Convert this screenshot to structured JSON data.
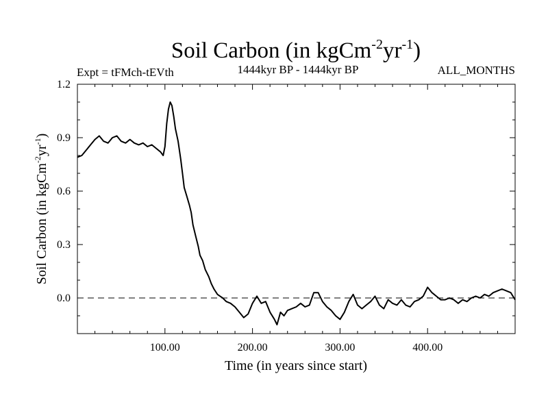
{
  "header": {
    "title": "Soil Carbon (in kgCm",
    "title_exp1": "-2",
    "title_mid": "yr",
    "title_exp2": "-1",
    "title_end": ")",
    "expt": "Expt = tFMch-tEVth",
    "period": "1444kyr BP - 1444kyr BP",
    "season": "ALL_MONTHS"
  },
  "chart_data": {
    "type": "line",
    "title": "Soil Carbon (in kgCm-2yr-1)",
    "xlabel": "Time (in years since start)",
    "ylabel": "Soil Carbon (in kgCm-2yr-1)",
    "ylabel_parts": {
      "main": "Soil Carbon (in kgCm",
      "exp1": "-2",
      "mid": "yr",
      "exp2": "-1",
      "end": ")"
    },
    "xlim": [
      0,
      500
    ],
    "ylim": [
      -0.2,
      1.2
    ],
    "x_ticks": [
      100,
      200,
      300,
      400
    ],
    "x_tick_labels": [
      "100.00",
      "200.00",
      "300.00",
      "400.00"
    ],
    "y_ticks": [
      0.0,
      0.3,
      0.6,
      0.9,
      1.2
    ],
    "y_tick_labels": [
      "0.0",
      "0.3",
      "0.6",
      "0.9",
      "1.2"
    ],
    "reference_line": 0.0,
    "series": [
      {
        "name": "tFMch-tEVth",
        "color": "#000000",
        "points": [
          [
            0,
            0.79
          ],
          [
            5,
            0.8
          ],
          [
            10,
            0.83
          ],
          [
            15,
            0.86
          ],
          [
            20,
            0.89
          ],
          [
            25,
            0.91
          ],
          [
            30,
            0.88
          ],
          [
            35,
            0.87
          ],
          [
            40,
            0.9
          ],
          [
            45,
            0.91
          ],
          [
            50,
            0.88
          ],
          [
            55,
            0.87
          ],
          [
            60,
            0.89
          ],
          [
            65,
            0.87
          ],
          [
            70,
            0.86
          ],
          [
            75,
            0.87
          ],
          [
            80,
            0.85
          ],
          [
            85,
            0.86
          ],
          [
            90,
            0.84
          ],
          [
            95,
            0.82
          ],
          [
            98,
            0.8
          ],
          [
            100,
            0.85
          ],
          [
            102,
            0.98
          ],
          [
            104,
            1.06
          ],
          [
            106,
            1.1
          ],
          [
            108,
            1.08
          ],
          [
            110,
            1.02
          ],
          [
            112,
            0.95
          ],
          [
            115,
            0.88
          ],
          [
            118,
            0.78
          ],
          [
            120,
            0.7
          ],
          [
            122,
            0.62
          ],
          [
            125,
            0.57
          ],
          [
            128,
            0.52
          ],
          [
            130,
            0.48
          ],
          [
            132,
            0.41
          ],
          [
            135,
            0.35
          ],
          [
            138,
            0.29
          ],
          [
            140,
            0.24
          ],
          [
            143,
            0.21
          ],
          [
            146,
            0.16
          ],
          [
            150,
            0.12
          ],
          [
            153,
            0.08
          ],
          [
            156,
            0.05
          ],
          [
            160,
            0.02
          ],
          [
            163,
            0.01
          ],
          [
            166,
            0.0
          ],
          [
            170,
            -0.02
          ],
          [
            175,
            -0.03
          ],
          [
            180,
            -0.05
          ],
          [
            185,
            -0.08
          ],
          [
            190,
            -0.11
          ],
          [
            195,
            -0.09
          ],
          [
            200,
            -0.03
          ],
          [
            205,
            0.01
          ],
          [
            210,
            -0.03
          ],
          [
            215,
            -0.02
          ],
          [
            220,
            -0.08
          ],
          [
            225,
            -0.12
          ],
          [
            228,
            -0.15
          ],
          [
            232,
            -0.08
          ],
          [
            236,
            -0.1
          ],
          [
            240,
            -0.07
          ],
          [
            245,
            -0.06
          ],
          [
            250,
            -0.05
          ],
          [
            255,
            -0.03
          ],
          [
            260,
            -0.05
          ],
          [
            265,
            -0.04
          ],
          [
            270,
            0.03
          ],
          [
            275,
            0.03
          ],
          [
            280,
            -0.02
          ],
          [
            285,
            -0.05
          ],
          [
            290,
            -0.07
          ],
          [
            295,
            -0.1
          ],
          [
            300,
            -0.12
          ],
          [
            305,
            -0.08
          ],
          [
            310,
            -0.02
          ],
          [
            315,
            0.02
          ],
          [
            320,
            -0.04
          ],
          [
            325,
            -0.06
          ],
          [
            330,
            -0.04
          ],
          [
            335,
            -0.02
          ],
          [
            340,
            0.01
          ],
          [
            345,
            -0.04
          ],
          [
            350,
            -0.06
          ],
          [
            355,
            -0.01
          ],
          [
            360,
            -0.03
          ],
          [
            365,
            -0.04
          ],
          [
            370,
            -0.01
          ],
          [
            375,
            -0.04
          ],
          [
            380,
            -0.05
          ],
          [
            385,
            -0.02
          ],
          [
            390,
            -0.01
          ],
          [
            395,
            0.01
          ],
          [
            400,
            0.06
          ],
          [
            405,
            0.03
          ],
          [
            410,
            0.01
          ],
          [
            415,
            -0.01
          ],
          [
            420,
            -0.01
          ],
          [
            425,
            0.0
          ],
          [
            430,
            -0.01
          ],
          [
            435,
            -0.03
          ],
          [
            440,
            -0.01
          ],
          [
            445,
            -0.02
          ],
          [
            450,
            0.0
          ],
          [
            455,
            0.01
          ],
          [
            460,
            0.0
          ],
          [
            465,
            0.02
          ],
          [
            470,
            0.01
          ],
          [
            475,
            0.03
          ],
          [
            480,
            0.04
          ],
          [
            485,
            0.05
          ],
          [
            490,
            0.04
          ],
          [
            495,
            0.03
          ],
          [
            500,
            -0.01
          ]
        ]
      }
    ]
  }
}
